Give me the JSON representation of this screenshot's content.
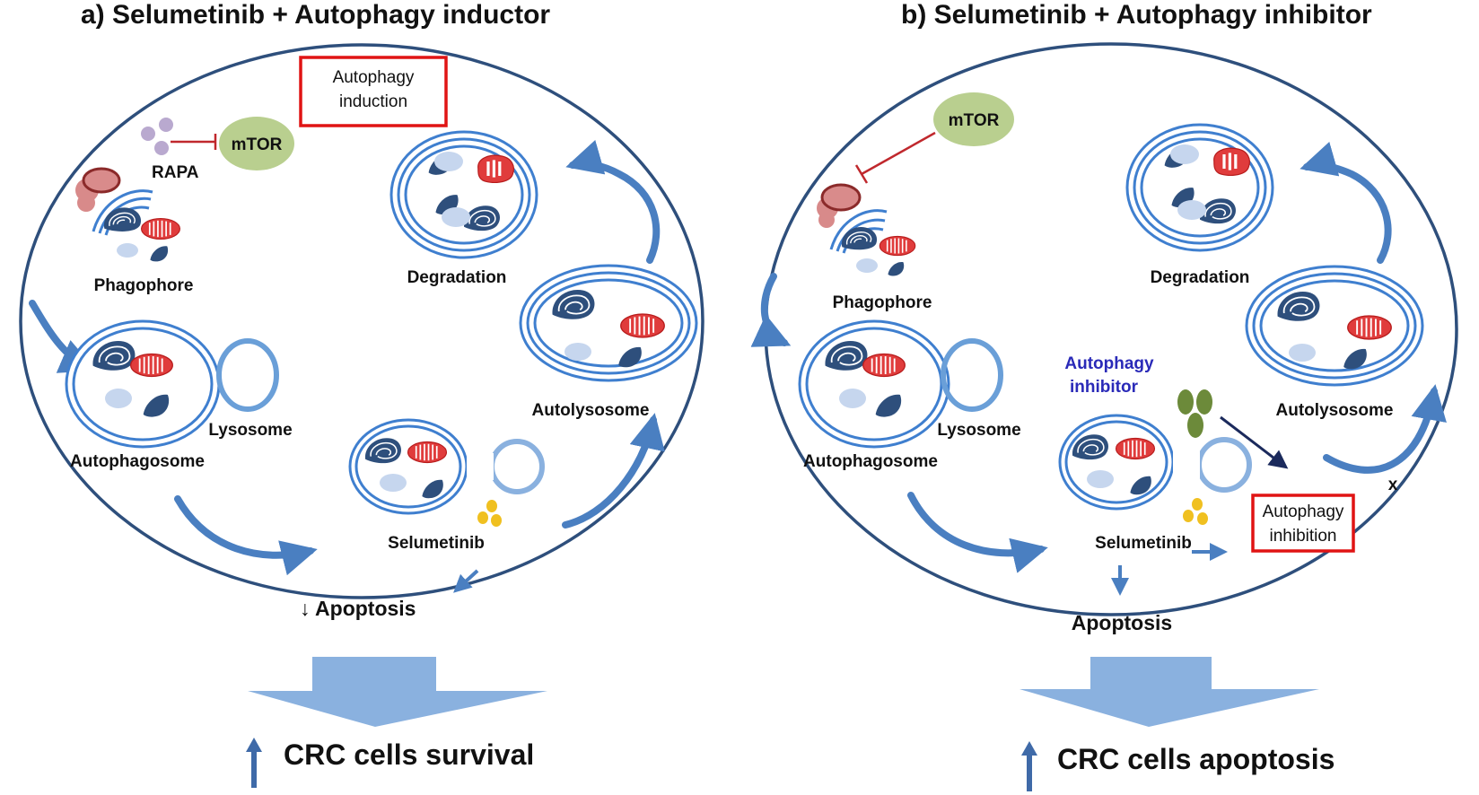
{
  "panel_a": {
    "title": "a) Selumetinib + Autophagy inductor",
    "rapa": "RAPA",
    "mtor": "mTOR",
    "box_line1": "Autophagy",
    "box_line2": "induction",
    "phagophore": "Phagophore",
    "autophagosome": "Autophagosome",
    "lysosome": "Lysosome",
    "degradation": "Degradation",
    "autolysosome": "Autolysosome",
    "selumetinib": "Selumetinib",
    "apoptosis": "↓ Apoptosis",
    "outcome": "CRC cells survival"
  },
  "panel_b": {
    "title": "b) Selumetinib + Autophagy inhibitor",
    "mtor": "mTOR",
    "phagophore": "Phagophore",
    "autophagosome": "Autophagosome",
    "lysosome": "Lysosome",
    "degradation": "Degradation",
    "autolysosome": "Autolysosome",
    "inhibitor_line1": "Autophagy",
    "inhibitor_line2": "inhibitor",
    "selumetinib": "Selumetinib",
    "apoptosis": "Apoptosis",
    "box_line1": "Autophagy",
    "box_line2": "inhibition",
    "x_mark": "x",
    "outcome": "CRC cells apoptosis"
  },
  "colors": {
    "cell_outline": "#2e4f7c",
    "vesicle": "#3f7fcf",
    "arrow_blue": "#4a7fc1",
    "mito": "#e03c3c",
    "red_box": "#e01414",
    "mtor_fill": "#b9cf8f",
    "inhibitor_text": "#2a2ab8",
    "dark_arrow": "#1b2a5c"
  }
}
